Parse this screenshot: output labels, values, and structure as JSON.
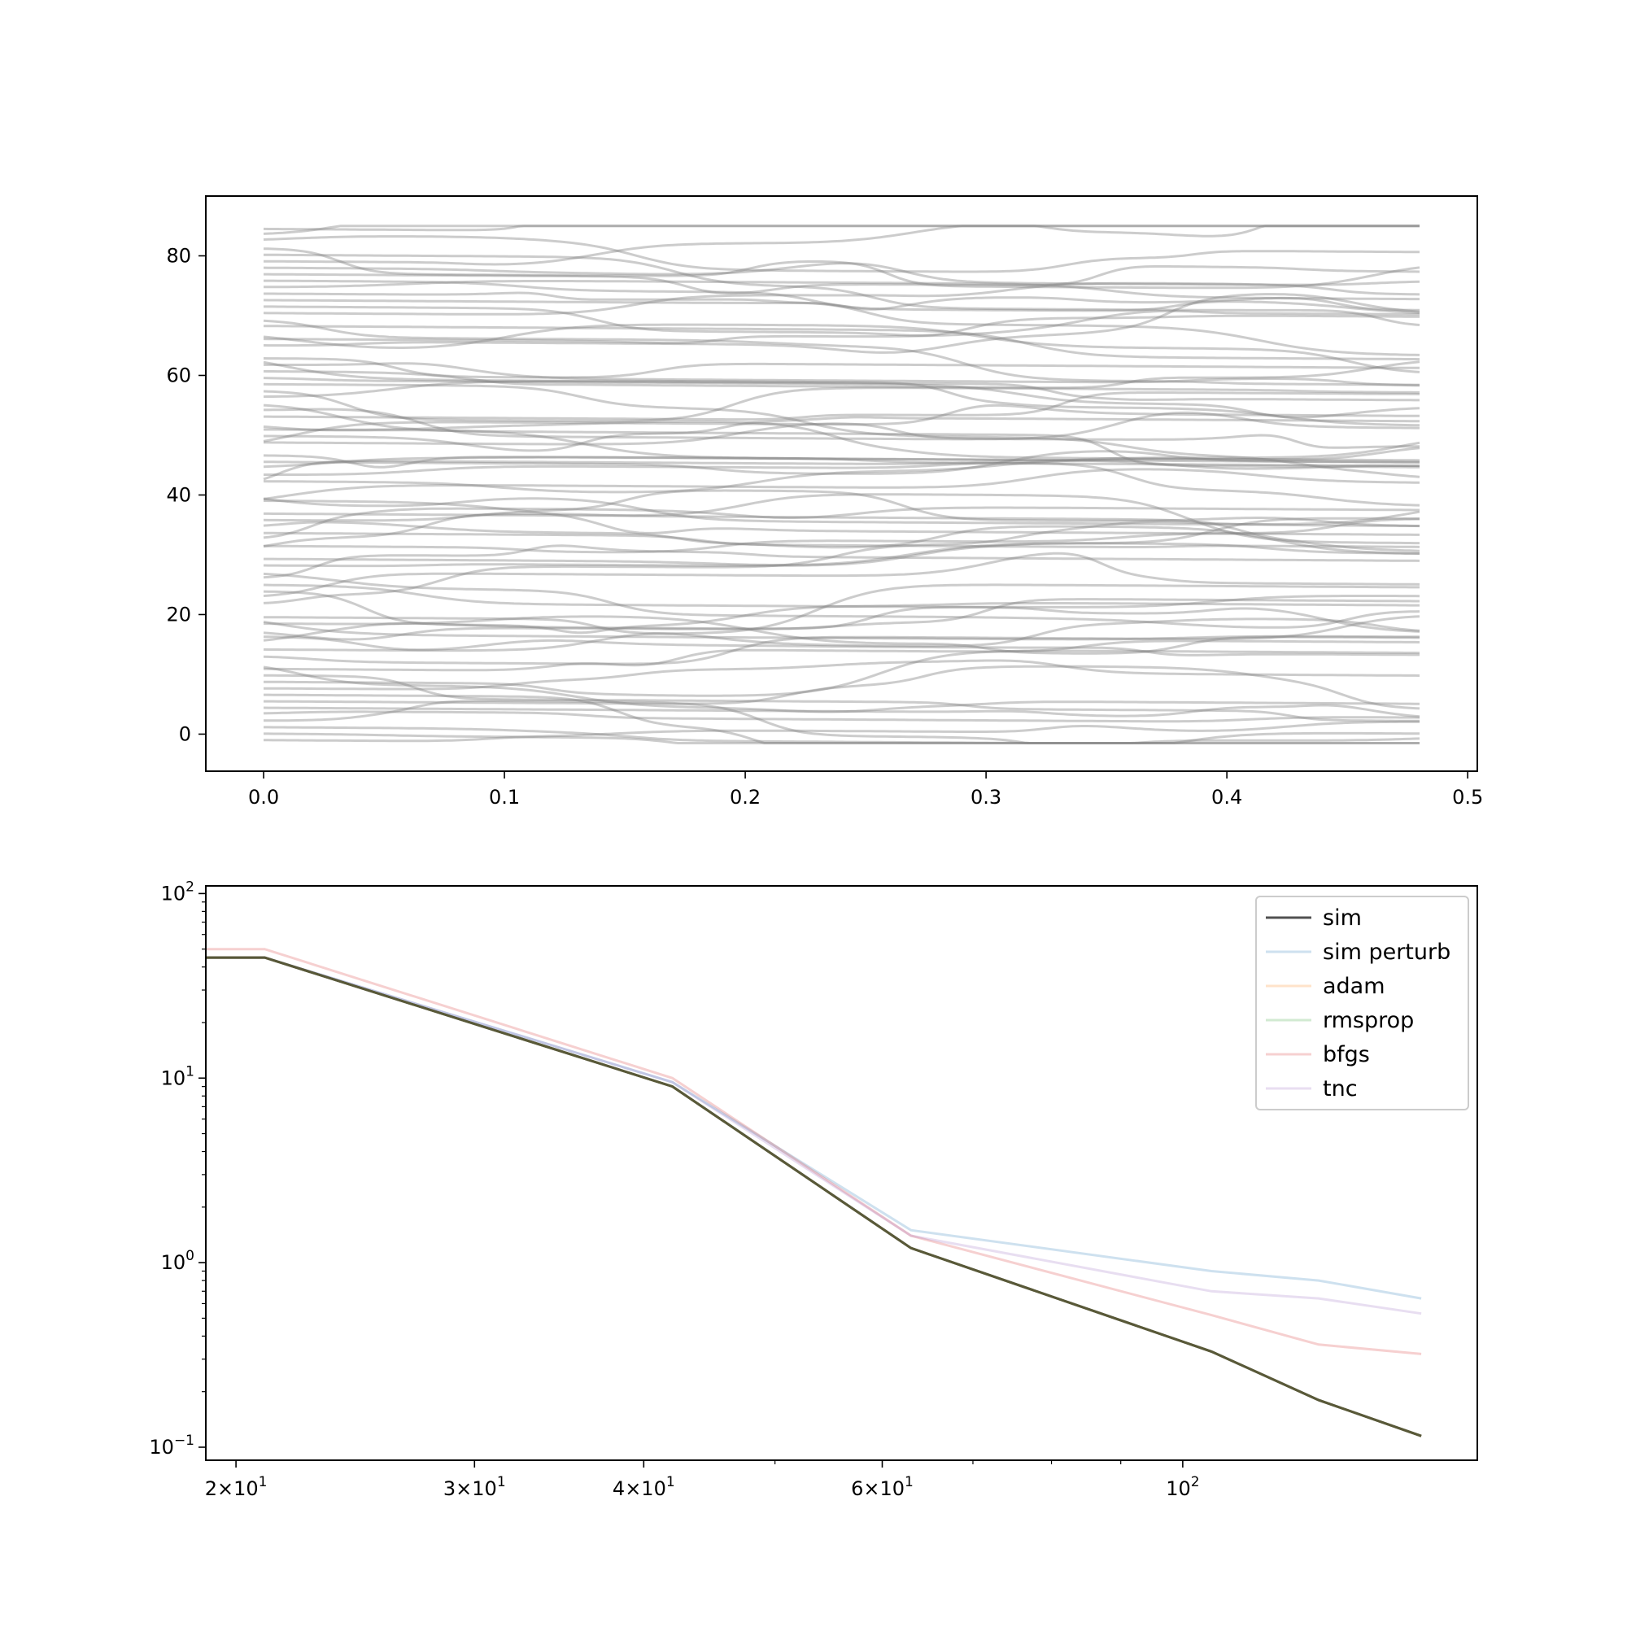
{
  "chart_data": [
    {
      "type": "line",
      "title": "",
      "xlabel": "",
      "ylabel": "",
      "xlim": [
        -0.024,
        0.504
      ],
      "ylim": [
        -6.2,
        90.0
      ],
      "x_ticks": [
        0.0,
        0.1,
        0.2,
        0.3,
        0.4,
        0.5
      ],
      "x_tick_labels": [
        "0.0",
        "0.1",
        "0.2",
        "0.3",
        "0.4",
        "0.5"
      ],
      "y_ticks": [
        0,
        20,
        40,
        60,
        80
      ],
      "y_tick_labels": [
        "0",
        "20",
        "40",
        "60",
        "80"
      ],
      "grid": false,
      "line_color": "#808080",
      "line_alpha": 0.4,
      "trajectory_count": 80,
      "x_range": [
        0.0,
        0.48
      ],
      "y_range": [
        -1.5,
        85.0
      ]
    },
    {
      "type": "line",
      "title": "",
      "xlabel": "",
      "ylabel": "",
      "xscale": "log",
      "yscale": "log",
      "xlim": [
        19.0,
        165.0
      ],
      "ylim": [
        0.085,
        110.0
      ],
      "x_ticks": [
        20,
        30,
        40,
        60,
        100
      ],
      "x_tick_labels": [
        "2×10^1",
        "3×10^1",
        "4×10^1",
        "6×10^1",
        "10^2"
      ],
      "y_ticks": [
        0.1,
        1,
        10,
        100
      ],
      "y_tick_labels": [
        "10^−1",
        "10^0",
        "10^1",
        "10^2"
      ],
      "grid": false,
      "legend_position": "upper right",
      "x": [
        19.0,
        21.0,
        42.0,
        63.0,
        105.0,
        126.0,
        150.0
      ],
      "series": [
        {
          "name": "sim",
          "color": "#333333",
          "alpha": 0.85,
          "width": 3,
          "values": [
            45,
            45,
            9.0,
            1.2,
            0.33,
            0.18,
            0.115
          ]
        },
        {
          "name": "sim perturb",
          "color": "#1f77b4",
          "alpha": 0.22,
          "width": 3,
          "values": [
            45,
            45,
            9.5,
            1.5,
            0.9,
            0.8,
            0.64
          ]
        },
        {
          "name": "adam",
          "color": "#ff7f0e",
          "alpha": 0.22,
          "width": 3,
          "values": [
            45,
            45,
            9.0,
            1.2,
            0.33,
            0.18,
            0.115
          ]
        },
        {
          "name": "rmsprop",
          "color": "#2ca02c",
          "alpha": 0.22,
          "width": 3,
          "values": [
            45,
            45,
            9.0,
            1.2,
            0.33,
            0.18,
            0.115
          ]
        },
        {
          "name": "bfgs",
          "color": "#d62728",
          "alpha": 0.22,
          "width": 3,
          "values": [
            50,
            50,
            10.0,
            1.4,
            0.52,
            0.36,
            0.32
          ]
        },
        {
          "name": "tnc",
          "color": "#9467bd",
          "alpha": 0.22,
          "width": 3,
          "values": [
            45,
            45,
            9.5,
            1.4,
            0.7,
            0.64,
            0.53
          ]
        }
      ]
    }
  ]
}
